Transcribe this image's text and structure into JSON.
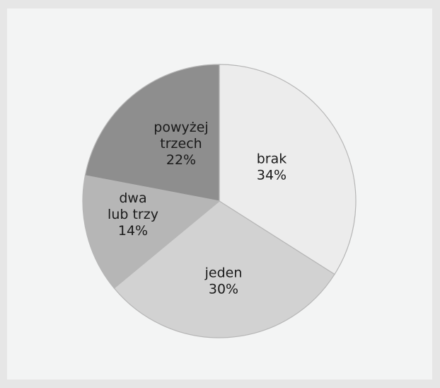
{
  "chart_data": {
    "type": "pie",
    "title": "",
    "slices": [
      {
        "label_lines": [
          "brak"
        ],
        "value_label": "34%",
        "value": 34,
        "color": "#ececec"
      },
      {
        "label_lines": [
          "jeden"
        ],
        "value_label": "30%",
        "value": 30,
        "color": "#d2d2d2"
      },
      {
        "label_lines": [
          "dwa",
          "lub trzy"
        ],
        "value_label": "14%",
        "value": 14,
        "color": "#b6b6b6"
      },
      {
        "label_lines": [
          "powyżej",
          "trzech"
        ],
        "value_label": "22%",
        "value": 22,
        "color": "#8e8e8e"
      }
    ]
  }
}
